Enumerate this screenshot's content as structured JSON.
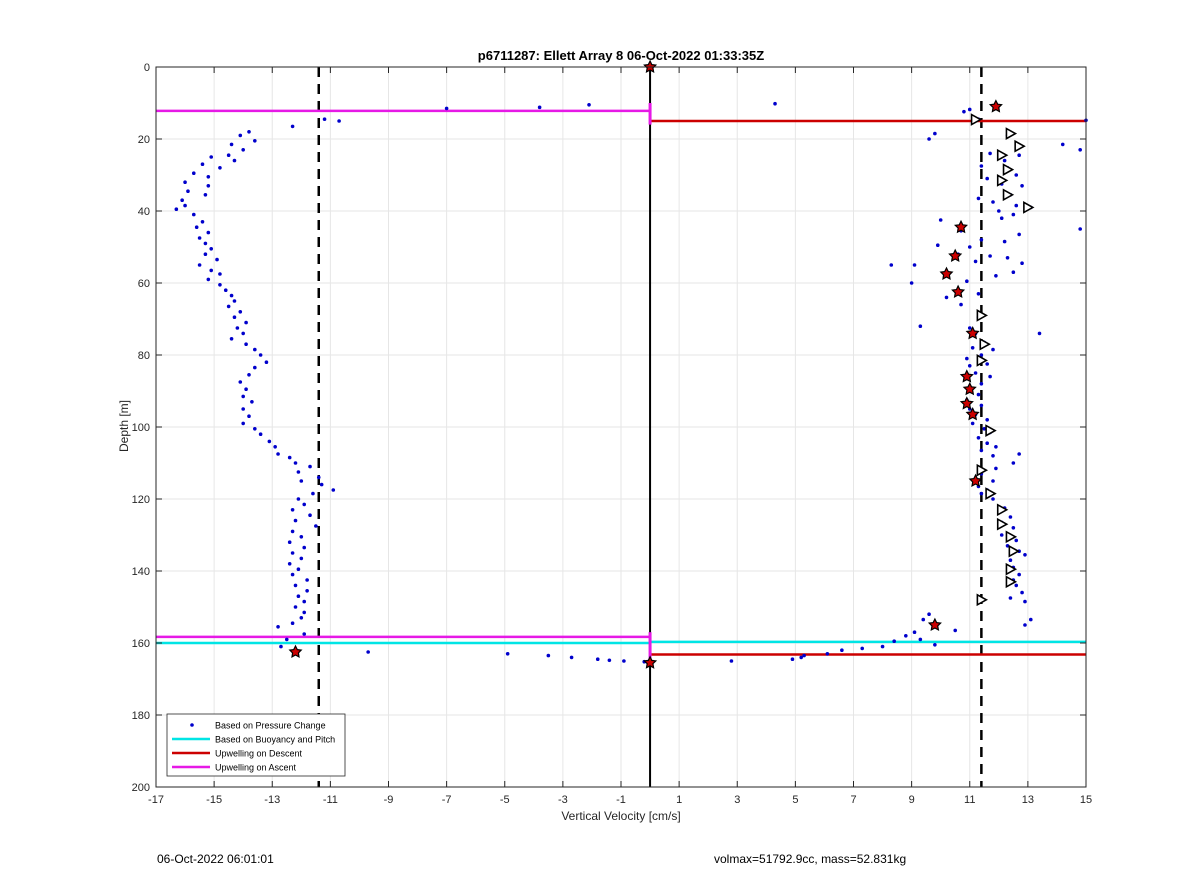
{
  "chart_data": {
    "type": "scatter",
    "title": "p6711287: Ellett Array 8 06-Oct-2022 01:33:35Z",
    "xlabel": "Vertical Velocity [cm/s]",
    "ylabel": "Depth [m]",
    "xlim": [
      -17,
      15
    ],
    "ylim": [
      0,
      200
    ],
    "y_reversed": true,
    "grid": true,
    "x_ticks": [
      -17,
      -15,
      -13,
      -11,
      -9,
      -7,
      -5,
      -3,
      -1,
      1,
      3,
      5,
      7,
      9,
      11,
      13,
      15
    ],
    "y_ticks": [
      0,
      20,
      40,
      60,
      80,
      100,
      120,
      140,
      160,
      180,
      200
    ],
    "legend_position": "bottom-left",
    "legend": [
      {
        "label": "Based on Pressure Change",
        "color": "#0000cc",
        "style": "dots"
      },
      {
        "label": "Based on Buoyancy and Pitch",
        "color": "#00e5e5",
        "style": "line"
      },
      {
        "label": "Upwelling on Descent",
        "color": "#cc0000",
        "style": "line"
      },
      {
        "label": "Upwelling on Ascent",
        "color": "#e619e6",
        "style": "line"
      }
    ],
    "reference_lines": {
      "dashed_vertical": [
        -11.4,
        11.4
      ],
      "solid_vertical": [
        0
      ]
    },
    "descent_points": [
      [
        11.9,
        11.2
      ],
      [
        11.0,
        11.8
      ],
      [
        10.8,
        12.4
      ],
      [
        11.3,
        14.5
      ],
      [
        15.0,
        14.8
      ],
      [
        14.2,
        21.5
      ],
      [
        14.8,
        23.0
      ],
      [
        12.3,
        19.0
      ],
      [
        9.8,
        18.5
      ],
      [
        9.6,
        20.0
      ],
      [
        11.7,
        24.0
      ],
      [
        12.7,
        24.5
      ],
      [
        12.2,
        26.0
      ],
      [
        11.4,
        27.5
      ],
      [
        12.3,
        28.0
      ],
      [
        12.6,
        30.0
      ],
      [
        11.6,
        31.0
      ],
      [
        12.1,
        32.5
      ],
      [
        12.8,
        33.0
      ],
      [
        12.4,
        35.5
      ],
      [
        11.3,
        36.5
      ],
      [
        11.8,
        37.5
      ],
      [
        12.6,
        38.5
      ],
      [
        13.1,
        39.0
      ],
      [
        12.0,
        40.0
      ],
      [
        12.5,
        41.0
      ],
      [
        12.1,
        42.0
      ],
      [
        10.0,
        42.5
      ],
      [
        10.7,
        45.5
      ],
      [
        14.8,
        45.0
      ],
      [
        12.7,
        46.5
      ],
      [
        11.4,
        48.0
      ],
      [
        12.2,
        48.5
      ],
      [
        11.0,
        50.0
      ],
      [
        9.9,
        49.5
      ],
      [
        10.6,
        52.0
      ],
      [
        11.7,
        52.5
      ],
      [
        12.3,
        53.0
      ],
      [
        11.2,
        54.0
      ],
      [
        12.8,
        54.5
      ],
      [
        8.3,
        55.0
      ],
      [
        10.2,
        57.5
      ],
      [
        9.1,
        55.0
      ],
      [
        11.9,
        58.0
      ],
      [
        12.5,
        57.0
      ],
      [
        10.9,
        59.5
      ],
      [
        9.0,
        60.0
      ],
      [
        10.6,
        62.5
      ],
      [
        11.3,
        63.0
      ],
      [
        10.2,
        64.0
      ],
      [
        10.7,
        66.0
      ],
      [
        11.3,
        69.5
      ],
      [
        9.3,
        72.0
      ],
      [
        11.0,
        72.5
      ],
      [
        11.2,
        74.0
      ],
      [
        13.4,
        74.0
      ],
      [
        11.5,
        76.5
      ],
      [
        11.1,
        78.0
      ],
      [
        11.8,
        78.5
      ],
      [
        11.4,
        80.0
      ],
      [
        10.9,
        81.0
      ],
      [
        11.6,
        82.5
      ],
      [
        11.0,
        83.0
      ],
      [
        11.2,
        85.0
      ],
      [
        10.9,
        86.5
      ],
      [
        11.7,
        86.0
      ],
      [
        11.4,
        88.0
      ],
      [
        11.0,
        89.5
      ],
      [
        11.3,
        91.0
      ],
      [
        10.9,
        92.5
      ],
      [
        11.4,
        94.0
      ],
      [
        11.0,
        95.0
      ],
      [
        11.2,
        96.5
      ],
      [
        11.6,
        98.0
      ],
      [
        11.1,
        99.0
      ],
      [
        11.5,
        100.5
      ],
      [
        11.7,
        101.5
      ],
      [
        11.3,
        103.0
      ],
      [
        11.6,
        104.5
      ],
      [
        11.9,
        105.5
      ],
      [
        11.4,
        106.5
      ],
      [
        11.8,
        108.0
      ],
      [
        12.7,
        107.5
      ],
      [
        12.5,
        110.0
      ],
      [
        11.9,
        111.5
      ],
      [
        11.4,
        113.0
      ],
      [
        11.8,
        115.0
      ],
      [
        11.3,
        116.5
      ],
      [
        11.6,
        117.5
      ],
      [
        11.4,
        118.5
      ],
      [
        11.8,
        120.0
      ],
      [
        12.2,
        122.5
      ],
      [
        12.0,
        123.5
      ],
      [
        12.4,
        125.0
      ],
      [
        12.1,
        126.5
      ],
      [
        12.5,
        128.0
      ],
      [
        12.1,
        130.0
      ],
      [
        12.6,
        131.5
      ],
      [
        12.3,
        133.0
      ],
      [
        12.7,
        134.5
      ],
      [
        12.9,
        135.5
      ],
      [
        12.4,
        137.0
      ],
      [
        12.5,
        139.0
      ],
      [
        12.7,
        141.0
      ],
      [
        12.5,
        142.5
      ],
      [
        12.6,
        144.0
      ],
      [
        12.8,
        146.0
      ],
      [
        12.4,
        147.5
      ],
      [
        12.9,
        148.5
      ],
      [
        13.1,
        153.5
      ],
      [
        12.9,
        155.0
      ],
      [
        9.6,
        152.0
      ],
      [
        9.4,
        153.5
      ],
      [
        9.8,
        155.5
      ],
      [
        10.5,
        156.5
      ],
      [
        9.1,
        157.0
      ],
      [
        8.8,
        158.0
      ],
      [
        9.3,
        159.0
      ],
      [
        8.4,
        159.5
      ],
      [
        9.8,
        160.5
      ],
      [
        8.0,
        161.0
      ],
      [
        7.3,
        161.5
      ],
      [
        6.6,
        162.0
      ],
      [
        6.1,
        163.0
      ],
      [
        5.3,
        163.5
      ],
      [
        4.9,
        164.5
      ],
      [
        5.2,
        164.0
      ],
      [
        2.8,
        165.0
      ],
      [
        0.0,
        165.0
      ]
    ],
    "descent_markers_triangle": [
      [
        11.2,
        14.6
      ],
      [
        12.4,
        18.5
      ],
      [
        12.7,
        22.0
      ],
      [
        12.1,
        24.5
      ],
      [
        12.3,
        28.5
      ],
      [
        12.1,
        31.5
      ],
      [
        12.3,
        35.5
      ],
      [
        13.0,
        39.0
      ],
      [
        11.4,
        69.0
      ],
      [
        11.5,
        77.0
      ],
      [
        11.4,
        81.5
      ],
      [
        11.7,
        101.0
      ],
      [
        11.4,
        112.0
      ],
      [
        11.7,
        118.5
      ],
      [
        12.1,
        123.0
      ],
      [
        12.1,
        127.0
      ],
      [
        12.4,
        130.5
      ],
      [
        12.5,
        134.5
      ],
      [
        12.4,
        139.5
      ],
      [
        12.4,
        143.0
      ],
      [
        11.4,
        148.0
      ]
    ],
    "descent_markers_star": [
      [
        0.0,
        0.0
      ],
      [
        11.9,
        11.0
      ],
      [
        10.7,
        44.5
      ],
      [
        10.5,
        52.5
      ],
      [
        10.2,
        57.5
      ],
      [
        10.6,
        62.5
      ],
      [
        11.1,
        74.0
      ],
      [
        10.9,
        86.0
      ],
      [
        11.0,
        89.5
      ],
      [
        10.9,
        93.5
      ],
      [
        11.1,
        96.5
      ],
      [
        11.2,
        115.0
      ],
      [
        9.8,
        155.0
      ],
      [
        0.0,
        165.5
      ]
    ],
    "ascent_points": [
      [
        -2.1,
        10.5
      ],
      [
        -3.8,
        11.2
      ],
      [
        -7.0,
        11.5
      ],
      [
        4.3,
        10.2
      ],
      [
        -11.2,
        14.5
      ],
      [
        -10.7,
        15.0
      ],
      [
        -12.3,
        16.5
      ],
      [
        -13.8,
        18.0
      ],
      [
        -14.1,
        19.0
      ],
      [
        -13.6,
        20.5
      ],
      [
        -14.4,
        21.5
      ],
      [
        -14.0,
        23.0
      ],
      [
        -14.5,
        24.5
      ],
      [
        -14.3,
        26.0
      ],
      [
        -15.1,
        25.0
      ],
      [
        -15.4,
        27.0
      ],
      [
        -14.8,
        28.0
      ],
      [
        -15.7,
        29.5
      ],
      [
        -15.2,
        30.5
      ],
      [
        -16.0,
        32.0
      ],
      [
        -15.2,
        33.0
      ],
      [
        -15.9,
        34.5
      ],
      [
        -15.3,
        35.5
      ],
      [
        -16.1,
        37.0
      ],
      [
        -16.0,
        38.5
      ],
      [
        -16.3,
        39.5
      ],
      [
        -15.7,
        41.0
      ],
      [
        -15.4,
        43.0
      ],
      [
        -15.6,
        44.5
      ],
      [
        -15.2,
        46.0
      ],
      [
        -15.5,
        47.5
      ],
      [
        -15.3,
        49.0
      ],
      [
        -15.1,
        50.5
      ],
      [
        -15.3,
        52.0
      ],
      [
        -14.9,
        53.5
      ],
      [
        -15.5,
        55.0
      ],
      [
        -15.1,
        56.5
      ],
      [
        -14.8,
        57.5
      ],
      [
        -15.2,
        59.0
      ],
      [
        -14.8,
        60.5
      ],
      [
        -14.6,
        62.0
      ],
      [
        -14.4,
        63.5
      ],
      [
        -14.3,
        65.0
      ],
      [
        -14.5,
        66.5
      ],
      [
        -14.1,
        68.0
      ],
      [
        -14.3,
        69.5
      ],
      [
        -13.9,
        71.0
      ],
      [
        -14.2,
        72.5
      ],
      [
        -14.0,
        74.0
      ],
      [
        -14.4,
        75.5
      ],
      [
        -13.9,
        77.0
      ],
      [
        -13.6,
        78.5
      ],
      [
        -13.4,
        80.0
      ],
      [
        -13.2,
        82.0
      ],
      [
        -13.6,
        83.5
      ],
      [
        -13.8,
        85.5
      ],
      [
        -14.1,
        87.5
      ],
      [
        -13.9,
        89.5
      ],
      [
        -14.0,
        91.5
      ],
      [
        -13.7,
        93.0
      ],
      [
        -14.0,
        95.0
      ],
      [
        -13.8,
        97.0
      ],
      [
        -14.0,
        99.0
      ],
      [
        -13.6,
        100.5
      ],
      [
        -13.4,
        102.0
      ],
      [
        -13.1,
        104.0
      ],
      [
        -12.9,
        105.5
      ],
      [
        -12.8,
        107.5
      ],
      [
        -12.4,
        108.5
      ],
      [
        -12.2,
        110.0
      ],
      [
        -11.7,
        111.0
      ],
      [
        -12.1,
        112.5
      ],
      [
        -11.4,
        114.0
      ],
      [
        -12.0,
        115.0
      ],
      [
        -10.9,
        117.5
      ],
      [
        -11.3,
        116.0
      ],
      [
        -11.6,
        118.5
      ],
      [
        -12.1,
        120.0
      ],
      [
        -11.9,
        121.5
      ],
      [
        -12.3,
        123.0
      ],
      [
        -11.7,
        124.5
      ],
      [
        -12.2,
        126.0
      ],
      [
        -11.5,
        127.5
      ],
      [
        -12.3,
        129.0
      ],
      [
        -12.0,
        130.5
      ],
      [
        -12.4,
        132.0
      ],
      [
        -11.9,
        133.5
      ],
      [
        -12.3,
        135.0
      ],
      [
        -12.0,
        136.5
      ],
      [
        -12.4,
        138.0
      ],
      [
        -12.1,
        139.5
      ],
      [
        -12.3,
        141.0
      ],
      [
        -11.8,
        142.5
      ],
      [
        -12.2,
        144.0
      ],
      [
        -11.8,
        145.5
      ],
      [
        -12.1,
        147.0
      ],
      [
        -11.9,
        148.5
      ],
      [
        -12.2,
        150.0
      ],
      [
        -11.9,
        151.5
      ],
      [
        -12.0,
        153.0
      ],
      [
        -12.3,
        154.5
      ],
      [
        -12.8,
        155.5
      ],
      [
        -11.9,
        157.5
      ],
      [
        -12.5,
        159.0
      ],
      [
        -12.7,
        161.0
      ],
      [
        -12.2,
        162.5
      ],
      [
        -9.7,
        162.5
      ],
      [
        -4.9,
        163.0
      ],
      [
        -3.5,
        163.5
      ],
      [
        -2.7,
        164.0
      ],
      [
        -1.8,
        164.5
      ],
      [
        -1.4,
        164.8
      ],
      [
        -0.9,
        165.0
      ],
      [
        -0.2,
        165.2
      ]
    ],
    "ascent_markers_star": [
      [
        -12.2,
        162.5
      ]
    ],
    "overlay_lines": {
      "magenta_upper": {
        "x": [
          -17,
          0
        ],
        "y": 12.2
      },
      "red_upper": {
        "x": [
          0,
          15
        ],
        "y": 15.0
      },
      "magenta_lower": {
        "x": [
          -17,
          0
        ],
        "y": 158.3
      },
      "cyan_lower_left": {
        "x": [
          -17,
          0
        ],
        "y": 160.0
      },
      "cyan_lower_right": {
        "x": [
          0,
          15
        ],
        "y": 159.7
      },
      "red_lower": {
        "x": [
          0,
          15
        ],
        "y": 163.2
      },
      "magenta_vertical": {
        "x": 0,
        "y": [
          10,
          16
        ]
      },
      "magenta_vertical_lower": {
        "x": 0,
        "y": [
          157,
          165
        ]
      }
    }
  },
  "footer": {
    "timestamp": "06-Oct-2022 06:01:01",
    "info": "volmax=51792.9cc, mass=52.831kg"
  },
  "colors": {
    "points": "#0000cc",
    "cyan": "#00e5e5",
    "red": "#cc0000",
    "magenta": "#e619e6",
    "grid": "#e6e6e6",
    "axis": "#262626"
  }
}
